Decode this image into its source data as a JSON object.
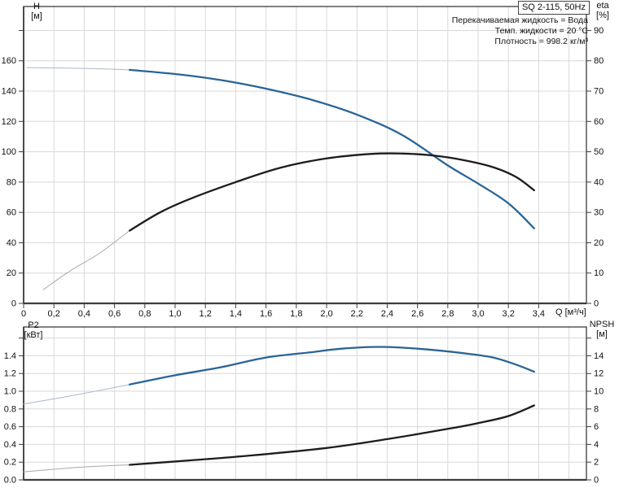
{
  "header": {
    "title_box": "SQ 2-115, 50Hz",
    "info_lines": [
      "Перекачиваемая жидкость = Вода",
      "Темп. жидкости = 20 °C",
      "Плотность = 998.2 кг/м³"
    ]
  },
  "colors": {
    "curve_blue": "#2a6496",
    "curve_black": "#1c1c1c",
    "thin_blue": "#a9b8c6",
    "thin_gray": "#a8a8a8",
    "grid": "#d8d8d8",
    "frame": "#3c3c3c",
    "text": "#111111",
    "background": "#ffffff"
  },
  "chart_data": [
    {
      "type": "line",
      "title": "",
      "x": {
        "label": "Q [м³/ч]",
        "lim": [
          0,
          3.715
        ],
        "grid_step": 0.2,
        "grid_max": 3.6,
        "ticks": [
          {
            "v": 0,
            "t": "0"
          },
          {
            "v": 0.2,
            "t": "0,2"
          },
          {
            "v": 0.4,
            "t": "0,4"
          },
          {
            "v": 0.6,
            "t": "0,6"
          },
          {
            "v": 0.8,
            "t": "0,8"
          },
          {
            "v": 1.0,
            "t": "1,0"
          },
          {
            "v": 1.2,
            "t": "1,2"
          },
          {
            "v": 1.4,
            "t": "1,4"
          },
          {
            "v": 1.6,
            "t": "1,6"
          },
          {
            "v": 1.8,
            "t": "1,8"
          },
          {
            "v": 2.0,
            "t": "2,0"
          },
          {
            "v": 2.2,
            "t": "2,2"
          },
          {
            "v": 2.4,
            "t": "2,4"
          },
          {
            "v": 2.6,
            "t": "2,6"
          },
          {
            "v": 2.8,
            "t": "2,8"
          },
          {
            "v": 3.0,
            "t": "3,0"
          },
          {
            "v": 3.2,
            "t": "3,2"
          },
          {
            "v": 3.4,
            "t": "3,4"
          }
        ],
        "show_tick_labels": true
      },
      "left": {
        "name": "H",
        "unit": "[м]",
        "lim": [
          0,
          195.8
        ],
        "grid_on": true,
        "ticks": [
          {
            "v": 0,
            "t": "0"
          },
          {
            "v": 20,
            "t": "20"
          },
          {
            "v": 40,
            "t": "40"
          },
          {
            "v": 60,
            "t": "60"
          },
          {
            "v": 80,
            "t": "80"
          },
          {
            "v": 100,
            "t": "100"
          },
          {
            "v": 120,
            "t": "120"
          },
          {
            "v": 140,
            "t": "140"
          },
          {
            "v": 160,
            "t": "160"
          },
          {
            "v": 180,
            "t": ""
          }
        ]
      },
      "right": {
        "name": "eta",
        "unit": "[%]",
        "lim": [
          0,
          97.9
        ],
        "grid_on": false,
        "ticks": [
          {
            "v": 0,
            "t": "0"
          },
          {
            "v": 10,
            "t": "10"
          },
          {
            "v": 20,
            "t": "20"
          },
          {
            "v": 30,
            "t": "30"
          },
          {
            "v": 40,
            "t": "40"
          },
          {
            "v": 50,
            "t": "50"
          },
          {
            "v": 60,
            "t": "60"
          },
          {
            "v": 70,
            "t": "70"
          },
          {
            "v": 80,
            "t": "80"
          },
          {
            "v": 90,
            "t": "90"
          }
        ]
      },
      "series": [
        {
          "id": "h-curve",
          "name": "H",
          "axis": "left",
          "color": "#2a6496",
          "thin_color": "#a9b8c6",
          "thin_until": 0.7,
          "points": [
            [
              0.02,
              155.5
            ],
            [
              0.4,
              155.0
            ],
            [
              0.7,
              154.0
            ],
            [
              1.0,
              151.3
            ],
            [
              1.3,
              147.3
            ],
            [
              1.6,
              141.6
            ],
            [
              1.9,
              134.3
            ],
            [
              2.2,
              124.5
            ],
            [
              2.5,
              111.0
            ],
            [
              2.8,
              91.0
            ],
            [
              3.0,
              79.0
            ],
            [
              3.2,
              66.0
            ],
            [
              3.37,
              49.5
            ]
          ]
        },
        {
          "id": "eta-curve",
          "name": "eta",
          "axis": "right",
          "color": "#1c1c1c",
          "thin_color": "#a8a8a8",
          "thin_until": 0.7,
          "points": [
            [
              0.13,
              4.5
            ],
            [
              0.3,
              10.5
            ],
            [
              0.5,
              16.5
            ],
            [
              0.7,
              24.0
            ],
            [
              0.9,
              30.0
            ],
            [
              1.1,
              34.5
            ],
            [
              1.4,
              40.0
            ],
            [
              1.7,
              44.8
            ],
            [
              2.0,
              47.8
            ],
            [
              2.3,
              49.3
            ],
            [
              2.5,
              49.4
            ],
            [
              2.7,
              48.8
            ],
            [
              2.9,
              47.3
            ],
            [
              3.1,
              44.9
            ],
            [
              3.25,
              41.7
            ],
            [
              3.37,
              37.3
            ]
          ]
        }
      ]
    },
    {
      "type": "line",
      "title": "",
      "x": {
        "label": "",
        "lim": [
          0,
          3.715
        ],
        "grid_step": 0.2,
        "grid_max": 3.6,
        "ticks": [],
        "show_tick_labels": false
      },
      "left": {
        "name": "P2",
        "unit": "[кВт]",
        "lim": [
          0,
          1.725
        ],
        "grid_on": true,
        "ticks": [
          {
            "v": 0.0,
            "t": "0.0"
          },
          {
            "v": 0.2,
            "t": "0.2"
          },
          {
            "v": 0.4,
            "t": "0.4"
          },
          {
            "v": 0.6,
            "t": "0.6"
          },
          {
            "v": 0.8,
            "t": "0.8"
          },
          {
            "v": 1.0,
            "t": "1.0"
          },
          {
            "v": 1.2,
            "t": "1.2"
          },
          {
            "v": 1.4,
            "t": "1.4"
          },
          {
            "v": 1.6,
            "t": ""
          }
        ]
      },
      "right": {
        "name": "NPSH",
        "unit": "[м]",
        "lim": [
          0,
          17.25
        ],
        "grid_on": false,
        "ticks": [
          {
            "v": 0,
            "t": "0"
          },
          {
            "v": 2,
            "t": "2"
          },
          {
            "v": 4,
            "t": "4"
          },
          {
            "v": 6,
            "t": "6"
          },
          {
            "v": 8,
            "t": "8"
          },
          {
            "v": 10,
            "t": "10"
          },
          {
            "v": 12,
            "t": "12"
          },
          {
            "v": 14,
            "t": "14"
          },
          {
            "v": 16,
            "t": ""
          }
        ]
      },
      "series": [
        {
          "id": "p2-curve",
          "name": "P2",
          "axis": "left",
          "color": "#2a6496",
          "thin_color": "#a9b8c6",
          "thin_until": 0.7,
          "points": [
            [
              0.0,
              0.855
            ],
            [
              0.35,
              0.96
            ],
            [
              0.7,
              1.075
            ],
            [
              1.0,
              1.18
            ],
            [
              1.3,
              1.27
            ],
            [
              1.6,
              1.38
            ],
            [
              1.9,
              1.44
            ],
            [
              2.1,
              1.48
            ],
            [
              2.35,
              1.5
            ],
            [
              2.6,
              1.48
            ],
            [
              2.9,
              1.43
            ],
            [
              3.1,
              1.38
            ],
            [
              3.25,
              1.3
            ],
            [
              3.37,
              1.22
            ]
          ]
        },
        {
          "id": "npsh-curve",
          "name": "NPSH",
          "axis": "right",
          "color": "#1c1c1c",
          "thin_color": "#a8a8a8",
          "thin_until": 0.7,
          "points": [
            [
              0.0,
              0.9
            ],
            [
              0.35,
              1.4
            ],
            [
              0.7,
              1.7
            ],
            [
              1.1,
              2.2
            ],
            [
              1.5,
              2.75
            ],
            [
              2.0,
              3.6
            ],
            [
              2.4,
              4.6
            ],
            [
              2.8,
              5.75
            ],
            [
              3.0,
              6.4
            ],
            [
              3.2,
              7.2
            ],
            [
              3.37,
              8.4
            ]
          ]
        }
      ]
    }
  ]
}
